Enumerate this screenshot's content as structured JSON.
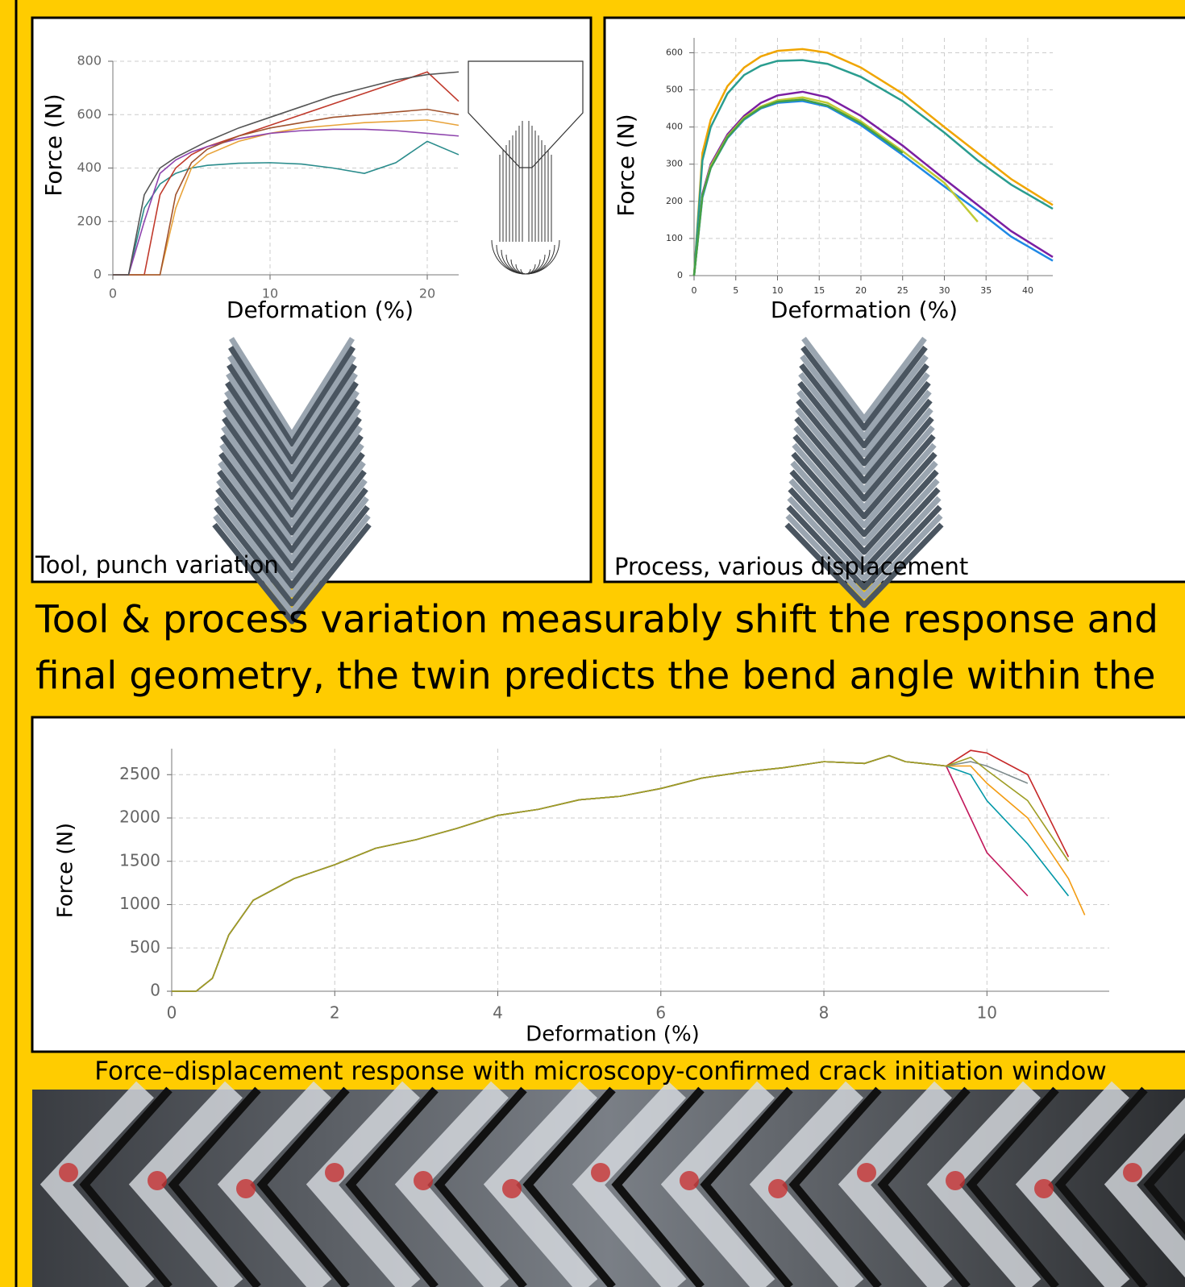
{
  "panels": [
    {
      "caption": "Tool, punch variation"
    },
    {
      "caption": "Process, various displacement"
    }
  ],
  "headline": [
    "Tool & process variation measurably shift the response and",
    "final geometry, the twin predicts the bend angle within the"
  ],
  "caption": "Force–displacement response with microscopy-confirmed crack initiation window",
  "chart_data": [
    {
      "type": "line",
      "x_label": "Deformation (%)",
      "y_label": "Force (N)",
      "grid": true,
      "xlim": [
        0,
        22
      ],
      "ylim": [
        0,
        800
      ],
      "xticks": [
        0,
        10,
        20
      ],
      "yticks": [
        0,
        200,
        400,
        600,
        800
      ],
      "x": [
        0,
        1,
        2,
        3,
        4,
        5,
        6,
        8,
        10,
        12,
        14,
        16,
        18,
        20,
        22
      ],
      "series": [
        {
          "color": "#2a8c8c",
          "values": [
            0,
            0,
            250,
            340,
            380,
            400,
            410,
            418,
            420,
            415,
            400,
            380,
            420,
            500,
            450
          ]
        },
        {
          "color": "#c0392b",
          "values": [
            0,
            0,
            0,
            300,
            400,
            450,
            480,
            520,
            560,
            600,
            640,
            680,
            720,
            760,
            650
          ]
        },
        {
          "color": "#e8a33a",
          "values": [
            0,
            0,
            0,
            0,
            250,
            400,
            450,
            500,
            530,
            550,
            560,
            570,
            575,
            580,
            560
          ]
        },
        {
          "color": "#8e44ad",
          "values": [
            0,
            0,
            200,
            380,
            430,
            460,
            480,
            510,
            530,
            540,
            545,
            545,
            540,
            530,
            520
          ]
        },
        {
          "color": "#a0522d",
          "values": [
            0,
            0,
            0,
            0,
            300,
            420,
            470,
            520,
            550,
            570,
            590,
            600,
            610,
            620,
            600
          ]
        },
        {
          "color": "#555555",
          "values": [
            0,
            0,
            300,
            400,
            440,
            470,
            500,
            550,
            590,
            630,
            670,
            700,
            730,
            750,
            760
          ]
        }
      ]
    },
    {
      "type": "line",
      "x_label": "Deformation (%)",
      "y_label": "Force (N)",
      "grid": true,
      "xlim": [
        0,
        43
      ],
      "ylim": [
        0,
        640
      ],
      "xticks": [
        0,
        5,
        10,
        15,
        20,
        25,
        30,
        35,
        40
      ],
      "yticks": [
        0,
        100,
        200,
        300,
        400,
        500,
        600
      ],
      "x": [
        0,
        1,
        2,
        4,
        6,
        8,
        10,
        13,
        16,
        20,
        25,
        30,
        34,
        38,
        43
      ],
      "series": [
        {
          "color": "#f0a500",
          "values": [
            0,
            330,
            420,
            510,
            560,
            590,
            605,
            610,
            600,
            560,
            490,
            400,
            330,
            260,
            190
          ]
        },
        {
          "color": "#2a9d8f",
          "values": [
            0,
            310,
            400,
            490,
            540,
            565,
            578,
            580,
            570,
            535,
            470,
            385,
            310,
            245,
            180
          ]
        },
        {
          "color": "#7b1fa2",
          "values": [
            0,
            220,
            300,
            380,
            430,
            465,
            485,
            495,
            480,
            430,
            350,
            260,
            190,
            120,
            50
          ]
        },
        {
          "color": "#1e88e5",
          "values": [
            0,
            210,
            290,
            370,
            420,
            450,
            465,
            470,
            455,
            405,
            325,
            240,
            175,
            105,
            40
          ]
        },
        {
          "color": "#c0ca33",
          "values": [
            0,
            215,
            295,
            375,
            425,
            455,
            472,
            480,
            465,
            415,
            335,
            250,
            145,
            null,
            null
          ]
        },
        {
          "color": "#43a047",
          "values": [
            0,
            215,
            290,
            372,
            422,
            452,
            468,
            474,
            458,
            410,
            330,
            null,
            null,
            null,
            null
          ]
        }
      ]
    },
    {
      "type": "line",
      "x_label": "Deformation (%)",
      "y_label": "Force (N)",
      "grid": true,
      "xlim": [
        0,
        11.5
      ],
      "ylim": [
        0,
        2800
      ],
      "xticks": [
        0,
        2,
        4,
        6,
        8,
        10
      ],
      "yticks": [
        0,
        500,
        1000,
        1500,
        2000,
        2500
      ],
      "x": [
        0,
        0.2,
        0.3,
        0.5,
        0.7,
        1,
        1.5,
        2,
        2.5,
        3,
        3.5,
        4,
        4.5,
        5,
        5.5,
        6,
        6.5,
        7,
        7.5,
        8,
        8.5,
        8.8,
        9,
        9.5,
        9.8,
        10,
        10.5,
        11,
        11.2
      ],
      "series": [
        {
          "color": "#c62828",
          "values": [
            0,
            0,
            0,
            150,
            650,
            1050,
            1300,
            1460,
            1650,
            1750,
            1880,
            2030,
            2100,
            2210,
            2250,
            2340,
            2460,
            2530,
            2580,
            2650,
            2630,
            2720,
            2650,
            2600,
            2780,
            2750,
            2500,
            1550,
            null
          ]
        },
        {
          "color": "#c2185b",
          "values": [
            0,
            0,
            0,
            150,
            650,
            1050,
            1300,
            1460,
            1650,
            1750,
            1880,
            2030,
            2100,
            2210,
            2250,
            2340,
            2460,
            2530,
            2580,
            2650,
            2630,
            2720,
            2650,
            2600,
            2000,
            1600,
            1100,
            null,
            null
          ]
        },
        {
          "color": "#0097a7",
          "values": [
            0,
            0,
            0,
            150,
            650,
            1050,
            1300,
            1460,
            1650,
            1750,
            1880,
            2030,
            2100,
            2210,
            2250,
            2340,
            2460,
            2530,
            2580,
            2650,
            2630,
            2720,
            2650,
            2600,
            2500,
            2200,
            1700,
            1100,
            null
          ]
        },
        {
          "color": "#f39c12",
          "values": [
            0,
            0,
            0,
            150,
            650,
            1050,
            1300,
            1460,
            1650,
            1750,
            1880,
            2030,
            2100,
            2210,
            2250,
            2340,
            2460,
            2530,
            2580,
            2650,
            2630,
            2720,
            2650,
            2600,
            2600,
            2400,
            2000,
            1300,
            880
          ]
        },
        {
          "color": "#7f8c8d",
          "values": [
            0,
            0,
            0,
            150,
            650,
            1050,
            1300,
            1460,
            1650,
            1750,
            1880,
            2030,
            2100,
            2210,
            2250,
            2340,
            2460,
            2530,
            2580,
            2650,
            2630,
            2720,
            2650,
            2600,
            2650,
            2600,
            2400,
            null,
            null
          ]
        },
        {
          "color": "#9e9d24",
          "values": [
            0,
            0,
            0,
            150,
            650,
            1050,
            1300,
            1460,
            1650,
            1750,
            1880,
            2030,
            2100,
            2210,
            2250,
            2340,
            2460,
            2530,
            2580,
            2650,
            2630,
            2720,
            2650,
            2600,
            2700,
            2550,
            2200,
            1500,
            null
          ]
        }
      ]
    }
  ]
}
